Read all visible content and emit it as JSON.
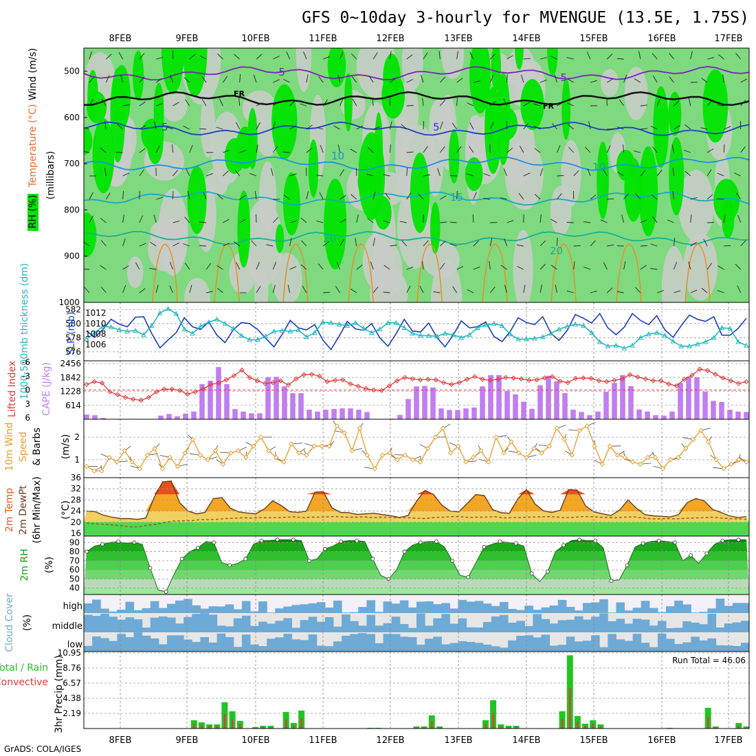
{
  "title": "GFS 0~10day 3-hourly for MVENGUE (13.5E, 1.75S)",
  "footer": "GrADS: COLA/IGES",
  "run_total_label": "Run Total = 46.06",
  "colors": {
    "rh_green_bright": "#00e400",
    "rh_green_mid": "#7fd97f",
    "rh_gray": "#c8ccc8",
    "slp_line": "#1a3fbf",
    "thickness_line": "#22b8c0",
    "lifted_index": "#e23a3a",
    "cape_bars": "#c07ef0",
    "wind_speed": "#e89a2a",
    "temp_fill": "#f0d060",
    "dewpoint": "#8b5a2b",
    "rh2m_fill": "#2fb82f",
    "cloud_cover": "#6eaad6",
    "precip_total": "#22c422",
    "precip_conv": "#e23a3a"
  },
  "chart_data": [
    {
      "type": "heatmap",
      "panel": "upper-air",
      "ylabel_parts": [
        "RH (%)",
        "Temperature (°C)",
        "Wind (m/s)"
      ],
      "yunit_label": "(millibars)",
      "x_ticks": [
        "8FEB",
        "9FEB",
        "10FEB",
        "11FEB",
        "12FEB",
        "13FEB",
        "14FEB",
        "15FEB",
        "16FEB",
        "17FEB"
      ],
      "y_ticks": [
        500,
        600,
        700,
        800,
        900,
        1000
      ],
      "ylim": [
        1000,
        450
      ],
      "contour_labels": [
        "-5",
        "FR",
        "5",
        "10",
        "15",
        "20"
      ],
      "isotherms": [
        {
          "label": "-5",
          "level_mb": 505
        },
        {
          "label": "0",
          "level_mb": 560
        },
        {
          "label": "5",
          "level_mb": 625
        },
        {
          "label": "10",
          "level_mb": 700
        },
        {
          "label": "15",
          "level_mb": 775
        },
        {
          "label": "20",
          "level_mb": 860
        }
      ]
    },
    {
      "type": "line",
      "panel": "slp-thickness",
      "ylabel_left": "1000-500mb thickness (dm)",
      "ylabel_right": "SLP (mb)",
      "y_left_ticks": [
        576,
        578,
        580,
        582
      ],
      "y_right_ticks": [
        1006,
        1008,
        1010,
        1012
      ],
      "series": [
        {
          "name": "SLP (mb)",
          "axis": "right",
          "values": [
            1008.6,
            1007.4,
            1008.9,
            1010.8,
            1009.9,
            1009.4,
            1011.2,
            1011.3,
            1008.1,
            1005.4,
            1006.9,
            1008.3,
            1011.1,
            1009.4,
            1008.9,
            1010.3,
            1007.8,
            1006.4,
            1008.8,
            1010.2,
            1010.0,
            1008.9,
            1007.2,
            1005.6,
            1007.9,
            1010.6,
            1009.2,
            1008.8,
            1009.8,
            1006.9,
            1005.1,
            1007.6,
            1010.4,
            1009.0,
            1008.7,
            1010.0,
            1007.3,
            1005.7,
            1008.1,
            1010.8,
            1008.6,
            1008.4,
            1010.1,
            1007.4,
            1005.6,
            1007.8,
            1010.5,
            1009.2,
            1009.4,
            1010.3,
            1007.6,
            1006.6,
            1008.5,
            1011.1,
            1010.2,
            1009.8,
            1011.3,
            1008.2,
            1006.8,
            1008.7,
            1011.7,
            1011.0,
            1010.1,
            1011.9,
            1009.2,
            1007.9,
            1009.3,
            1011.9,
            1010.6,
            1009.8,
            1011.5,
            1008.8,
            1007.4,
            1009.6,
            1011.6,
            1010.8,
            1010.4,
            1011.3,
            1007.8,
            1007.8,
            1009.1,
            1011.0
          ]
        },
        {
          "name": "Thickness (dm)",
          "axis": "left",
          "values": [
            577.8,
            578.7,
            579.6,
            579.5,
            579.1,
            578.9,
            579.0,
            578.4,
            579.7,
            581.5,
            582.1,
            581.4,
            579.2,
            578.6,
            579.6,
            580.2,
            580.6,
            580.0,
            579.3,
            578.3,
            577.7,
            577.7,
            578.2,
            578.9,
            579.0,
            578.9,
            579.1,
            578.1,
            578.7,
            580.2,
            580.1,
            579.9,
            579.7,
            580.1,
            579.3,
            578.7,
            579.2,
            580.1,
            580.1,
            579.4,
            578.6,
            578.3,
            578.3,
            578.2,
            578.6,
            578.4,
            578.0,
            578.4,
            579.4,
            579.8,
            580.0,
            579.7,
            578.5,
            577.8,
            577.8,
            577.9,
            578.1,
            578.6,
            579.2,
            579.6,
            579.9,
            579.7,
            578.7,
            577.4,
            576.8,
            576.9,
            576.5,
            576.9,
            578.0,
            578.5,
            578.7,
            578.3,
            577.5,
            576.8,
            576.8,
            577.1,
            577.4,
            578.0,
            579.4,
            579.3,
            577.4,
            576.9
          ]
        }
      ]
    },
    {
      "type": "bar",
      "panel": "lifted-index-cape",
      "ylabel_left": "Lifted Index",
      "ylabel_right": "CAPE (J/kg)",
      "y_left_ticks": [
        -6,
        -3,
        0,
        3,
        6
      ],
      "y_right_ticks": [
        614,
        1228,
        1842,
        2456
      ],
      "series": [
        {
          "name": "CAPE (J/kg)",
          "values": [
            205,
            175,
            55,
            10,
            10,
            10,
            10,
            10,
            10,
            160,
            230,
            130,
            250,
            340,
            1550,
            1700,
            2300,
            1550,
            450,
            340,
            260,
            260,
            1860,
            1870,
            1450,
            1150,
            1150,
            420,
            340,
            420,
            455,
            480,
            480,
            420,
            320,
            10,
            10,
            25,
            190,
            890,
            1450,
            1470,
            1400,
            480,
            410,
            410,
            480,
            520,
            1450,
            1950,
            1950,
            1250,
            1100,
            770,
            460,
            1500,
            1920,
            1680,
            1150,
            420,
            320,
            180,
            340,
            1210,
            1600,
            1950,
            1460,
            430,
            340,
            180,
            160,
            340,
            1600,
            1880,
            1860,
            1220,
            810,
            760,
            420,
            340,
            320
          ]
        },
        {
          "name": "Lifted Index",
          "values": [
            -1.2,
            -1.8,
            -1.5,
            0.4,
            1.0,
            1.6,
            2.0,
            2.2,
            1.6,
            0.4,
            -0.2,
            -0.2,
            0.1,
            0.9,
            0.4,
            -0.2,
            -1.2,
            -1.5,
            -2.2,
            -3.1,
            -4.3,
            -2.7,
            -2.0,
            -1.4,
            -1.6,
            -2.0,
            -1.1,
            -2.4,
            -3.3,
            -3.4,
            -3.0,
            -1.8,
            -2.1,
            -2.2,
            -1.3,
            -0.8,
            -0.3,
            0.0,
            0.1,
            -0.9,
            -2.0,
            -2.7,
            -2.4,
            -2.2,
            -2.3,
            -2.2,
            -1.6,
            -1.2,
            -1.6,
            -2.3,
            -2.9,
            -2.3,
            -2.1,
            -2.3,
            -2.7,
            -2.6,
            -2.4,
            -2.1,
            -2.2,
            -2.6,
            -2.9,
            -1.9,
            -1.6,
            -2.5,
            -2.6,
            -2.5,
            -2.0,
            -1.8,
            -2.1,
            -2.4,
            -3.3,
            -2.8,
            -2.4,
            -2.0,
            -2.0,
            -1.3,
            -0.9,
            -2.3,
            -3.2,
            -4.5,
            -4.2,
            -3.4,
            -2.6,
            -2.0,
            -1.4,
            -1.8
          ]
        }
      ]
    },
    {
      "type": "line",
      "panel": "wind-10m",
      "ylabel": "10m Wind Speed & Barbs (m/s)",
      "y_ticks": [
        1,
        2
      ],
      "ylim": [
        0.2,
        2.8
      ],
      "series": [
        {
          "name": "10m Wind Speed (m/s)",
          "values": [
            0.7,
            0.5,
            0.5,
            1.1,
            0.9,
            1.4,
            0.9,
            0.6,
            1.2,
            1.5,
            0.6,
            1.1,
            0.7,
            1.3,
            1.9,
            1.2,
            1.0,
            1.4,
            0.8,
            1.3,
            1.4,
            1.1,
            1.6,
            2.0,
            1.4,
            1.1,
            0.9,
            1.7,
            1.3,
            1.2,
            1.6,
            1.6,
            1.6,
            2.5,
            2.2,
            1.4,
            2.4,
            1.2,
            0.6,
            1.2,
            1.3,
            1.0,
            1.2,
            1.0,
            0.9,
            1.5,
            2.0,
            2.4,
            1.3,
            1.6,
            0.9,
            1.1,
            1.4,
            0.9,
            2.0,
            1.3,
            1.8,
            1.3,
            1.1,
            1.5,
            1.3,
            1.6,
            2.4,
            1.9,
            1.2,
            2.3,
            2.5,
            1.6,
            0.8,
            1.6,
            1.2,
            1.1,
            0.9,
            0.8,
            1.1,
            1.1,
            0.6,
            1.0,
            1.1,
            1.5,
            1.9,
            2.3,
            1.8,
            1.0,
            0.6,
            0.8,
            1.0,
            0.9
          ]
        }
      ]
    },
    {
      "type": "area",
      "panel": "temp-2m",
      "ylabel": "2m Temp 2m DewPt (6hr Min/Max) (°C)",
      "y_ticks": [
        16,
        20,
        24,
        28,
        32,
        36
      ],
      "ylim": [
        15,
        36
      ],
      "series": [
        {
          "name": "2m Temp (°C)",
          "values": [
            24.0,
            23.8,
            22.5,
            21.8,
            21.3,
            21.3,
            21.0,
            21.5,
            29.0,
            34.5,
            34.8,
            27.0,
            24.0,
            23.0,
            23.5,
            28.5,
            28.8,
            25.0,
            23.7,
            23.3,
            23.0,
            24.7,
            27.7,
            26.0,
            23.8,
            23.5,
            24.0,
            30.8,
            30.9,
            25.2,
            23.5,
            23.4,
            22.8,
            23.0,
            23.2,
            22.7,
            22.3,
            21.7,
            22.4,
            27.5,
            31.4,
            30.0,
            26.1,
            24.0,
            23.7,
            26.7,
            29.9,
            29.6,
            24.5,
            23.4,
            23.2,
            28.5,
            31.7,
            26.6,
            24.1,
            23.5,
            24.3,
            31.7,
            31.5,
            25.8,
            23.7,
            23.0,
            22.4,
            24.3,
            28.0,
            25.0,
            22.7,
            22.3,
            22.1,
            21.9,
            22.7,
            27.0,
            28.5,
            27.7,
            24.6,
            23.5,
            22.3,
            21.7,
            22.0
          ]
        },
        {
          "name": "2m DewPt (°C)",
          "values": [
            19.7,
            19.4,
            19.2,
            19.0,
            18.7,
            18.3,
            18.3,
            18.9,
            19.2,
            19.9,
            20.4,
            20.5,
            20.5,
            20.9,
            20.9,
            21.0,
            21.3,
            21.4,
            21.6,
            21.5,
            21.6,
            21.6,
            21.6,
            21.8,
            21.9,
            21.6,
            21.8,
            21.8,
            22.0,
            22.0,
            21.8,
            21.8,
            21.9,
            21.6,
            21.8,
            21.7,
            21.6,
            21.6,
            21.4,
            21.3,
            21.7,
            21.8,
            22.0,
            22.0,
            21.7,
            21.8,
            21.8,
            22.0,
            21.5,
            21.6,
            21.7,
            21.8,
            21.9,
            22.0,
            21.9,
            21.6,
            21.7,
            22.0,
            22.0,
            21.8,
            21.7,
            21.6,
            21.8,
            21.9,
            21.6,
            21.2,
            21.2,
            21.3,
            21.2,
            21.4,
            21.5,
            21.6,
            21.8,
            21.5,
            21.3,
            21.2,
            21.0
          ]
        }
      ]
    },
    {
      "type": "area",
      "panel": "rh-2m",
      "ylabel": "2m RH (%)",
      "y_ticks": [
        40,
        50,
        60,
        70,
        80,
        90
      ],
      "ylim": [
        33,
        97
      ],
      "series": [
        {
          "name": "2m RH (%)",
          "values": [
            80,
            86,
            88,
            90,
            91,
            89,
            90,
            88,
            62,
            38,
            36,
            55,
            72,
            80,
            84,
            91,
            90,
            68,
            65,
            67,
            72,
            88,
            92,
            92,
            93,
            93,
            93,
            92,
            70,
            72,
            83,
            86,
            91,
            92,
            92,
            91,
            72,
            54,
            50,
            60,
            80,
            87,
            90,
            91,
            91,
            85,
            70,
            54,
            52,
            68,
            85,
            88,
            91,
            90,
            89,
            86,
            56,
            47,
            58,
            80,
            87,
            92,
            93,
            92,
            92,
            84,
            48,
            49,
            65,
            85,
            89,
            91,
            92,
            91,
            90,
            70,
            76,
            67,
            78,
            88,
            92,
            93,
            93,
            93
          ]
        }
      ]
    },
    {
      "type": "area",
      "panel": "cloud-cover",
      "ylabel": "Cloud Cover (%)",
      "y_ticks": [
        "high",
        "middle",
        "low"
      ]
    },
    {
      "type": "bar",
      "panel": "precip-3hr",
      "ylabel": "3hr Precip (mm)",
      "legend_left": [
        "Total / Rain",
        "Convective"
      ],
      "y_ticks": [
        2.19,
        4.38,
        6.57,
        8.76,
        10.95
      ],
      "ylim": [
        0,
        10.95
      ],
      "series": [
        {
          "name": "Total / Rain",
          "values": [
            0,
            0,
            0,
            0,
            0,
            0,
            0,
            0,
            0,
            0,
            0,
            0,
            0,
            0,
            1.2,
            0.9,
            0.6,
            0.6,
            3.8,
            2.5,
            1.1,
            0,
            0.2,
            0.4,
            0.4,
            0,
            2.4,
            0.8,
            2.6,
            0,
            0,
            0,
            0,
            0,
            0,
            0,
            0,
            0.1,
            0.1,
            0,
            0,
            0,
            0,
            0.3,
            0.3,
            1.9,
            0.3,
            0,
            0,
            0,
            0,
            0,
            1.2,
            4.1,
            0.6,
            0.4,
            0.4,
            0,
            0,
            0,
            0,
            0,
            2.5,
            10.6,
            1.8,
            0.7,
            1.2,
            0.6,
            0,
            0,
            0,
            0,
            0,
            0,
            0,
            0,
            0.1,
            0,
            0,
            0,
            0,
            3.0,
            0.3,
            0,
            0,
            0.8,
            0.3
          ]
        }
      ]
    }
  ]
}
